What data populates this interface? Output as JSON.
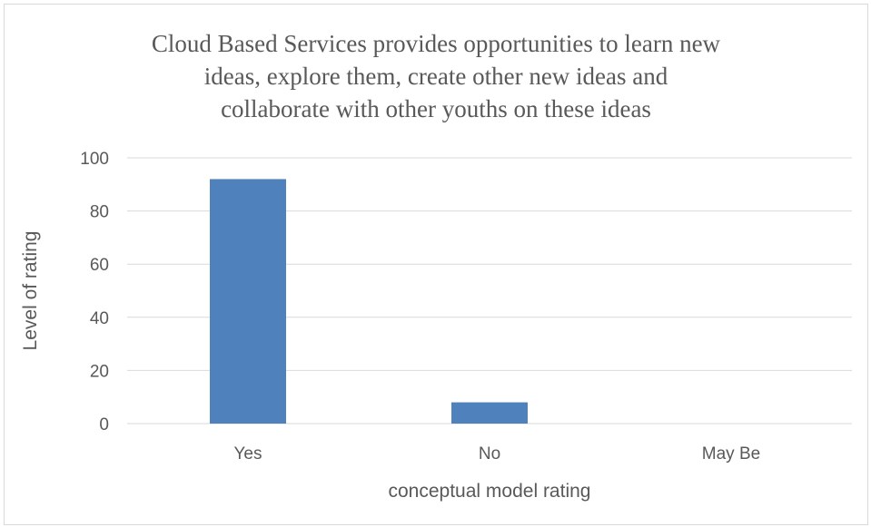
{
  "chart_data": {
    "type": "bar",
    "title_lines": [
      "Cloud Based Services provides opportunities to learn new",
      "ideas, explore them, create other new ideas and",
      "collaborate with other youths on these ideas"
    ],
    "categories": [
      "Yes",
      "No",
      "May Be"
    ],
    "values": [
      92,
      8,
      0
    ],
    "xlabel": "conceptual model rating",
    "ylabel": "Level of rating",
    "ylim": [
      0,
      100
    ],
    "yticks": [
      "0",
      "20",
      "40",
      "60",
      "80",
      "100"
    ],
    "grid": true,
    "bar_color": "#4f81bd",
    "legend": "none"
  }
}
